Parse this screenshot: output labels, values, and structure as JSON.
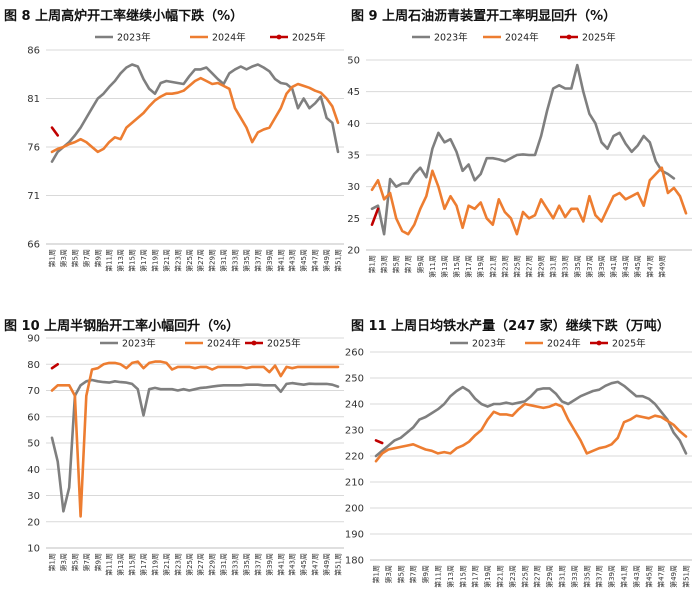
{
  "colors": {
    "s2023": "#7f7f7f",
    "s2024": "#ed7d31",
    "s2025": "#c00000",
    "grid": "#d9d9d9"
  },
  "chart_data": [
    {
      "type": "line",
      "title": "图 8  上周高炉开工率继续小幅下跌（%）",
      "ylim": [
        66,
        86
      ],
      "yticks": [
        66,
        71,
        76,
        81,
        86
      ],
      "xticks": [
        "第1周",
        "第3周",
        "第5周",
        "第7周",
        "第9周",
        "第11周",
        "第13周",
        "第15周",
        "第17周",
        "第19周",
        "第21周",
        "第23周",
        "第25周",
        "第27周",
        "第29周",
        "第31周",
        "第33周",
        "第35周",
        "第37周",
        "第39周",
        "第41周",
        "第43周",
        "第45周",
        "第47周",
        "第49周",
        "第51周"
      ],
      "series": [
        {
          "name": "2023年",
          "color": "#7f7f7f",
          "values": [
            74.5,
            75.5,
            76,
            76.5,
            77.2,
            78,
            79,
            80,
            81,
            81.5,
            82.2,
            82.8,
            83.6,
            84.2,
            84.5,
            84.3,
            83,
            82,
            81.5,
            82.6,
            82.8,
            82.7,
            82.6,
            82.5,
            83.3,
            84,
            84,
            84.2,
            83.6,
            83,
            82.5,
            83.6,
            84,
            84.3,
            84,
            84.3,
            84.5,
            84.2,
            83.8,
            83,
            82.6,
            82.5,
            82,
            80,
            81,
            80,
            80.5,
            81.2,
            79,
            78.5,
            75.5
          ]
        },
        {
          "name": "2024年",
          "color": "#ed7d31",
          "values": [
            75.5,
            75.8,
            76,
            76.3,
            76.5,
            76.8,
            76.5,
            76,
            75.5,
            75.8,
            76.5,
            77,
            76.8,
            78,
            78.5,
            79,
            79.5,
            80.2,
            80.8,
            81.2,
            81.5,
            81.5,
            81.6,
            81.8,
            82.3,
            82.8,
            83.1,
            82.8,
            82.5,
            82.6,
            82.3,
            82,
            80,
            79,
            78,
            76.5,
            77.5,
            77.8,
            78,
            79,
            80,
            81.5,
            82.2,
            82.5,
            82.3,
            82.1,
            81.8,
            81.6,
            81,
            80.2,
            78.5
          ]
        },
        {
          "name": "2025年",
          "color": "#c00000",
          "values": [
            78,
            77.2
          ]
        }
      ]
    },
    {
      "type": "line",
      "title": "图 9  上周石油沥青装置开工率明显回升（%）",
      "ylim": [
        20,
        50
      ],
      "yticks": [
        20,
        25,
        30,
        35,
        40,
        45,
        50
      ],
      "xticks": [
        "第1周",
        "第3周",
        "第5周",
        "第7周",
        "第9周",
        "第11周",
        "第13周",
        "第15周",
        "第17周",
        "第19周",
        "第21周",
        "第23周",
        "第25周",
        "第27周",
        "第29周",
        "第31周",
        "第33周",
        "第35周",
        "第37周",
        "第39周",
        "第41周",
        "第43周",
        "第45周",
        "第47周",
        "第49周"
      ],
      "series": [
        {
          "name": "2023年",
          "color": "#7f7f7f",
          "values": [
            26.5,
            27,
            22.5,
            31.2,
            30,
            30.5,
            30.5,
            32,
            33,
            31.5,
            36,
            38.5,
            37,
            37.5,
            35.5,
            32.5,
            33.5,
            31,
            32,
            34.5,
            34.5,
            34.3,
            34,
            34.5,
            35,
            35.1,
            35,
            35,
            38,
            42,
            45.5,
            46,
            45.5,
            45.5,
            49.2,
            45,
            41.5,
            40,
            37,
            36,
            38,
            38.5,
            36.8,
            35.5,
            36.5,
            38,
            37,
            34,
            32.5,
            32,
            31.3
          ]
        },
        {
          "name": "2024年",
          "color": "#ed7d31",
          "values": [
            29.5,
            31,
            28,
            29,
            25,
            23,
            22.5,
            24,
            26.5,
            28.5,
            32.5,
            30,
            26.5,
            28.5,
            27,
            23.5,
            27,
            26.5,
            27.5,
            25,
            24,
            28,
            26,
            25,
            22.5,
            26,
            25,
            25.5,
            28,
            26.5,
            25,
            27,
            25.2,
            26.5,
            26.5,
            24.5,
            28.5,
            25.5,
            24.5,
            26.5,
            28.5,
            29,
            28,
            28.5,
            29,
            27,
            31,
            32,
            33,
            29,
            29.8,
            28.5,
            25.8
          ]
        },
        {
          "name": "2025年",
          "color": "#c00000",
          "values": [
            24,
            26.5
          ]
        }
      ]
    },
    {
      "type": "line",
      "title": "图 10  上周半钢胎开工率小幅回升（%）",
      "ylim": [
        10,
        90
      ],
      "yticks": [
        10,
        20,
        30,
        40,
        50,
        60,
        70,
        80,
        90
      ],
      "xticks": [
        "第1周",
        "第3周",
        "第5周",
        "第7周",
        "第9周",
        "第11周",
        "第13周",
        "第15周",
        "第17周",
        "第19周",
        "第21周",
        "第23周",
        "第25周",
        "第27周",
        "第29周",
        "第31周",
        "第33周",
        "第35周",
        "第37周",
        "第39周",
        "第41周",
        "第43周",
        "第45周",
        "第47周",
        "第49周",
        "第51周"
      ],
      "series": [
        {
          "name": "2023年",
          "color": "#7f7f7f",
          "values": [
            52,
            43,
            24,
            33,
            68,
            72,
            73.5,
            74,
            73.5,
            73.2,
            73,
            73.5,
            73.2,
            73,
            72.5,
            70.5,
            60.5,
            70.5,
            71,
            70.5,
            70.5,
            70.5,
            70,
            70.5,
            70,
            70.5,
            71,
            71.2,
            71.5,
            71.8,
            72,
            72,
            72,
            72,
            72.2,
            72.2,
            72.2,
            72,
            72,
            72,
            69.5,
            72.5,
            72.8,
            72.5,
            72.2,
            72.6,
            72.5,
            72.5,
            72.5,
            72.2,
            71.5
          ]
        },
        {
          "name": "2024年",
          "color": "#ed7d31",
          "values": [
            70,
            72,
            72,
            72,
            68,
            22,
            68,
            78,
            78.5,
            80,
            80.5,
            80.5,
            80,
            78.5,
            80.5,
            81,
            78.5,
            80.5,
            81,
            81,
            80.5,
            78,
            79,
            79,
            79,
            78.5,
            79,
            79,
            78,
            79,
            79,
            79,
            79,
            79,
            78.5,
            79,
            79,
            79,
            77,
            79.5,
            75.5,
            79,
            78.5,
            79,
            79,
            79,
            79,
            79,
            79,
            79,
            79
          ]
        },
        {
          "name": "2025年",
          "color": "#c00000",
          "values": [
            78.5,
            80
          ]
        }
      ]
    },
    {
      "type": "line",
      "title": "图 11  上周日均铁水产量（247 家）继续下跌（万吨）",
      "ylim": [
        180,
        260
      ],
      "yticks": [
        180,
        190,
        200,
        210,
        220,
        230,
        240,
        250,
        260
      ],
      "xticks": [
        "第1周",
        "第3周",
        "第5周",
        "第7周",
        "第9周",
        "第11周",
        "第13周",
        "第15周",
        "第17周",
        "第19周",
        "第21周",
        "第23周",
        "第25周",
        "第27周",
        "第29周",
        "第31周",
        "第33周",
        "第35周",
        "第37周",
        "第39周",
        "第41周",
        "第43周",
        "第45周",
        "第47周",
        "第49周",
        "第51周"
      ],
      "series": [
        {
          "name": "2023年",
          "color": "#7f7f7f",
          "values": [
            220,
            222,
            224,
            226,
            227,
            229,
            231,
            234,
            235,
            236.5,
            238,
            240,
            243,
            245,
            246.5,
            245,
            242,
            240,
            239,
            240,
            240,
            240.5,
            240,
            240.5,
            241,
            243,
            245.5,
            246,
            246,
            244,
            241,
            240,
            241.5,
            243,
            244,
            245,
            245.5,
            247,
            248,
            248.5,
            247,
            245,
            243,
            243,
            242,
            240,
            237,
            234,
            229,
            226,
            221
          ]
        },
        {
          "name": "2024年",
          "color": "#ed7d31",
          "values": [
            218,
            221,
            222.5,
            223,
            223.5,
            224,
            224.5,
            223.5,
            222.5,
            222,
            221,
            221.5,
            221,
            223,
            224,
            225.5,
            228,
            230,
            234,
            237,
            236,
            236,
            235.5,
            238,
            240,
            239.5,
            239,
            238.5,
            239,
            240,
            239,
            234,
            230,
            226,
            221,
            222,
            223,
            223.5,
            224.5,
            227,
            233,
            234,
            235.5,
            235,
            234.5,
            235.5,
            235,
            233.5,
            232,
            229.5,
            227.5
          ]
        },
        {
          "name": "2025年",
          "color": "#c00000",
          "values": [
            226,
            225
          ]
        }
      ]
    }
  ]
}
